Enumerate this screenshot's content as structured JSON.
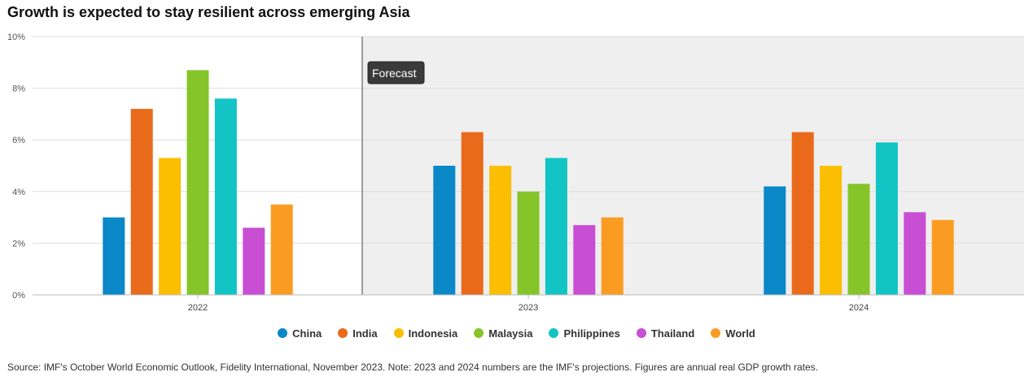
{
  "chart_data": {
    "type": "bar",
    "title": "Growth is expected to stay resilient across emerging Asia",
    "categories": [
      "2022",
      "2023",
      "2024"
    ],
    "series": [
      {
        "name": "China",
        "color": "#0a88c8",
        "values": [
          3.0,
          5.0,
          4.2
        ]
      },
      {
        "name": "India",
        "color": "#ea6a1b",
        "values": [
          7.2,
          6.3,
          6.3
        ]
      },
      {
        "name": "Indonesia",
        "color": "#fbbe01",
        "values": [
          5.3,
          5.0,
          5.0
        ]
      },
      {
        "name": "Malaysia",
        "color": "#85c52a",
        "values": [
          8.7,
          4.0,
          4.3
        ]
      },
      {
        "name": "Philippines",
        "color": "#12c4c4",
        "values": [
          7.6,
          5.3,
          5.9
        ]
      },
      {
        "name": "Thailand",
        "color": "#c84ed4",
        "values": [
          2.6,
          2.7,
          3.2
        ]
      },
      {
        "name": "World",
        "color": "#fb9c22",
        "values": [
          3.5,
          3.0,
          2.9
        ]
      }
    ],
    "ylim": [
      0,
      10
    ],
    "yticks": [
      "0%",
      "2%",
      "4%",
      "6%",
      "8%",
      "10%"
    ],
    "ytick_values": [
      0,
      2,
      4,
      6,
      8,
      10
    ],
    "forecast_label": "Forecast",
    "forecast_start_category": "2023",
    "legend_position": "bottom",
    "grid": true
  },
  "footer": {
    "source": "Source: IMF's October World Economic Outlook, Fidelity International, November 2023. Note: 2023 and 2024 numbers are the IMF's projections. Figures are annual real GDP growth rates."
  }
}
